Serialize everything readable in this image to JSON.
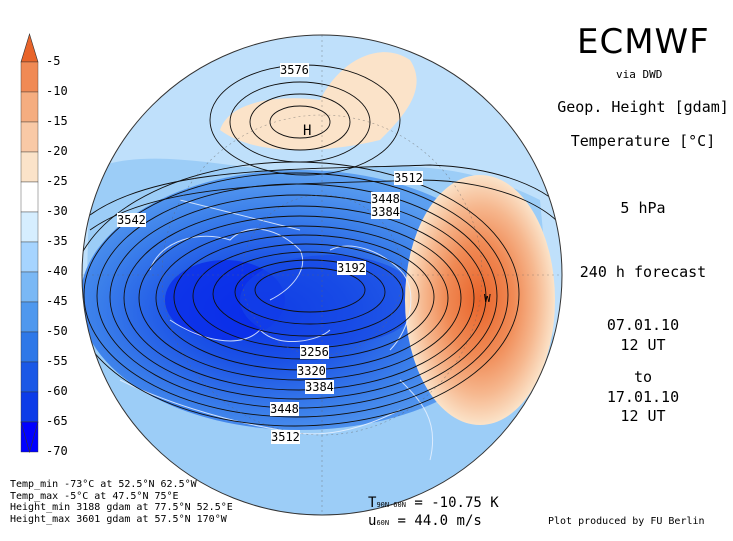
{
  "header": {
    "title": "ECMWF",
    "source": "via DWD"
  },
  "fields": {
    "contour_field": "Geop. Height [gdam]",
    "shaded_field": "Temperature [°C]",
    "level": "5 hPa",
    "forecast": "240 h forecast",
    "init_date": "07.01.10",
    "init_time": "12 UT",
    "to_label": "to",
    "valid_date": "17.01.10",
    "valid_time": "12 UT"
  },
  "colorbar": {
    "labels": [
      "-5",
      "-10",
      "-15",
      "-20",
      "-25",
      "-30",
      "-35",
      "-40",
      "-45",
      "-50",
      "-55",
      "-60",
      "-65",
      "-70"
    ],
    "colors": [
      "#e8642a",
      "#f08a55",
      "#f5ad80",
      "#f9c9a6",
      "#fbe3c9",
      "#ffffff",
      "#d6eeff",
      "#a6d4ff",
      "#7ab8f5",
      "#4f98ee",
      "#2e78e8",
      "#1a58e6",
      "#0c3ce8",
      "#0000ff"
    ]
  },
  "map": {
    "contour_labels": [
      "3576",
      "3542",
      "3512",
      "3448",
      "3384",
      "3192",
      "3256",
      "3320",
      "3384",
      "3448",
      "3512"
    ],
    "high_marker": "H",
    "warm_marker": "W"
  },
  "stats": {
    "temp_min": "Temp_min -73°C at 52.5°N 62.5°W",
    "temp_max": "Temp_max -5°C at 47.5°N 75°E",
    "height_min": "Height_min 3188 gdam at 77.5°N 52.5°E",
    "height_max": "Height_max 3601 gdam at 57.5°N 170°W"
  },
  "footer": {
    "t_symbol": "T",
    "t_sub": "90N-60N",
    "t_value": "= -10.75 K",
    "u_symbol": "u",
    "u_sub": "60N",
    "u_value": "= 44.0 m/s",
    "credit": "Plot produced by FU Berlin"
  }
}
